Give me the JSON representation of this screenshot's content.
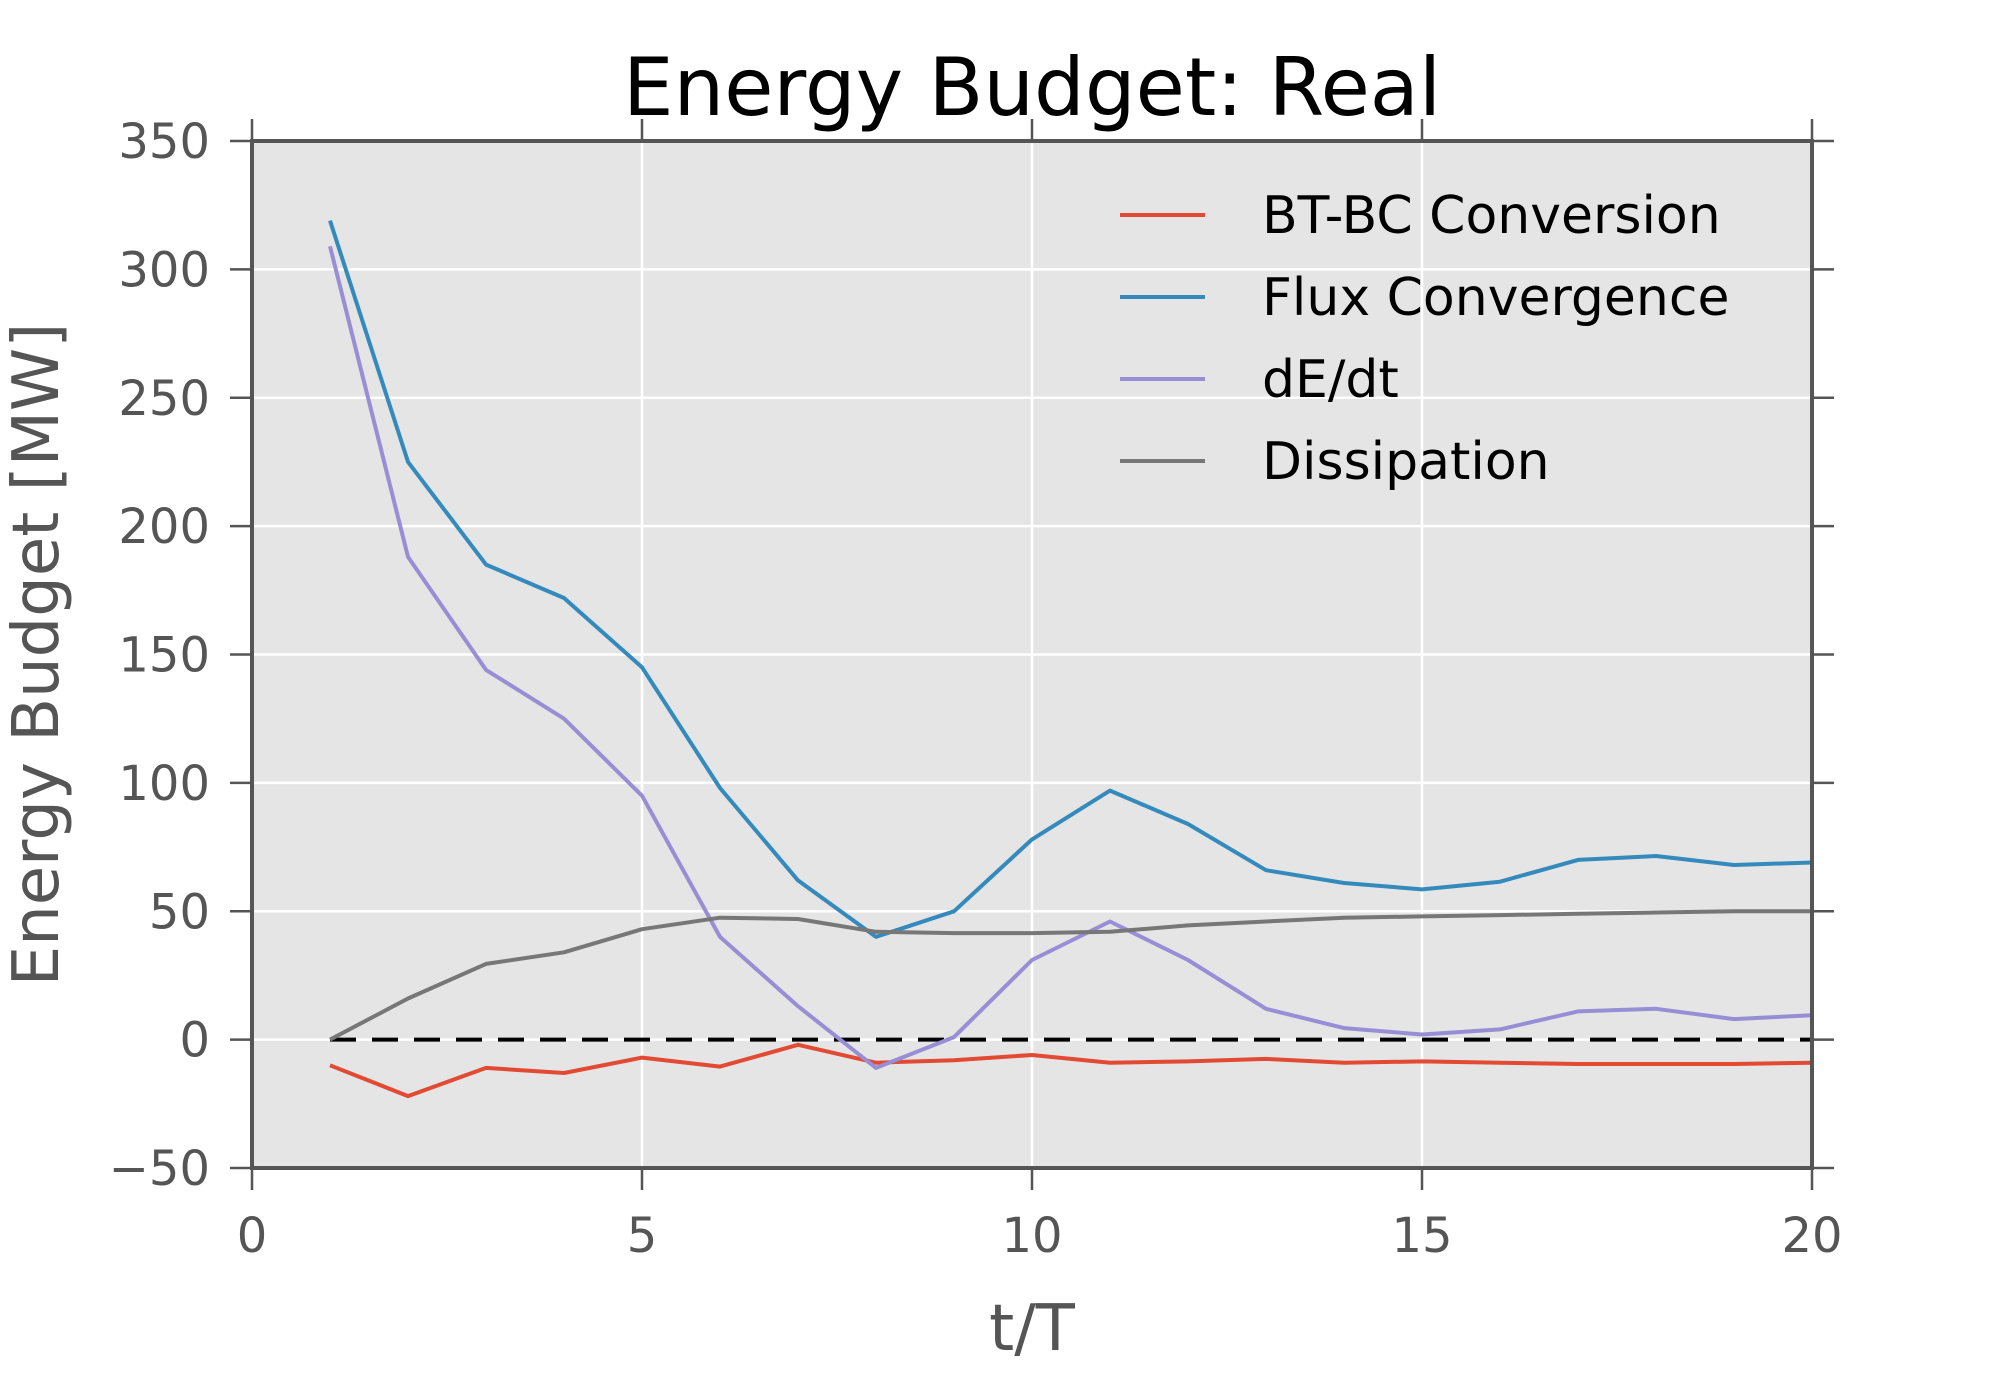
{
  "chart_data": {
    "type": "line",
    "title": "Energy Budget: Real",
    "xlabel": "t/T",
    "ylabel": "Energy Budget [MW]",
    "xlim": [
      0,
      20
    ],
    "ylim": [
      -50,
      350
    ],
    "xticks": [
      0,
      5,
      10,
      15,
      20
    ],
    "xtick_labels": [
      "0",
      "5",
      "10",
      "15",
      "20"
    ],
    "yticks": [
      -50,
      0,
      50,
      100,
      150,
      200,
      250,
      300,
      350
    ],
    "ytick_labels": [
      "−50",
      "0",
      "50",
      "100",
      "150",
      "200",
      "250",
      "300",
      "350"
    ],
    "grid": true,
    "legend_position": "top-right",
    "x": [
      1,
      2,
      3,
      4,
      5,
      6,
      7,
      8,
      9,
      10,
      11,
      12,
      13,
      14,
      15,
      16,
      17,
      18,
      19,
      20
    ],
    "series": [
      {
        "name": "BT-BC Conversion",
        "color": "#E24A33",
        "values": [
          -10,
          -22,
          -11,
          -13,
          -7,
          -10.5,
          -2,
          -9,
          -8,
          -6,
          -9,
          -8.5,
          -7.5,
          -9,
          -8.5,
          -9,
          -9.5,
          -9.5,
          -9.5,
          -9
        ]
      },
      {
        "name": "Flux Convergence",
        "color": "#348ABD",
        "values": [
          319,
          225,
          185,
          172,
          145,
          98,
          62,
          40,
          50,
          78,
          97,
          84,
          66,
          61,
          58.5,
          61.5,
          70,
          71.5,
          68,
          69
        ]
      },
      {
        "name": "dE/dt",
        "color": "#988ED5",
        "values": [
          309,
          188,
          144,
          125,
          95,
          40,
          13,
          -11,
          1,
          31,
          46,
          31,
          12,
          4.5,
          2,
          4,
          11,
          12,
          8,
          9.5
        ]
      },
      {
        "name": "Dissipation",
        "color": "#777777",
        "values": [
          0,
          16,
          29.5,
          34,
          43,
          47.5,
          47,
          42,
          41.5,
          41.5,
          42,
          44.5,
          46,
          47.5,
          48,
          48.5,
          49,
          49.5,
          50,
          50
        ]
      }
    ],
    "reference_line": {
      "y": 0,
      "style": "dashed",
      "color": "#000000"
    },
    "background_color": "#E5E5E5",
    "grid_color": "#FFFFFF",
    "spine_color": "#555555"
  }
}
